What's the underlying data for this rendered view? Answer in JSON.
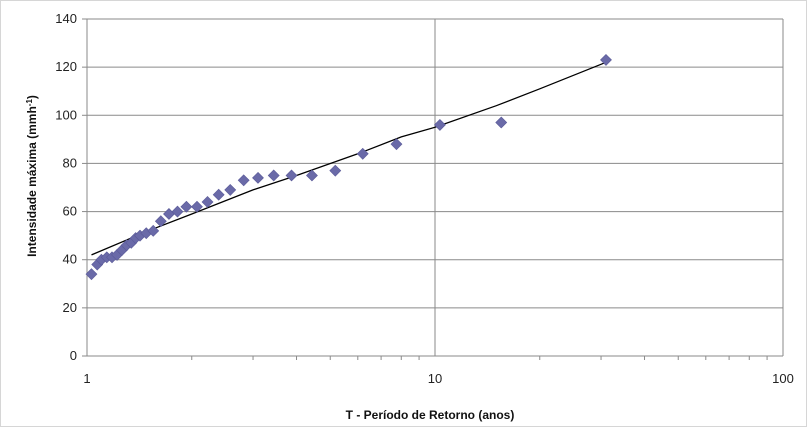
{
  "chart_data": {
    "type": "scatter",
    "xlabel": "T - Período de Retorno (anos)",
    "ylabel_main": "Intensidade máxima (mmh",
    "ylabel_sup": "-1",
    "ylabel_tail": ")",
    "xscale": "log",
    "xlim": [
      1,
      100
    ],
    "ylim": [
      0,
      140
    ],
    "x_ticks": [
      1,
      10,
      100
    ],
    "y_ticks": [
      0,
      20,
      40,
      60,
      80,
      100,
      120,
      140
    ],
    "grid": true,
    "legend": "none",
    "marker_color": "#6A6AA8",
    "line_color": "#000000",
    "series": [
      {
        "marker": "diamond",
        "x": [
          1.03,
          1.07,
          1.1,
          1.14,
          1.18,
          1.22,
          1.26,
          1.3,
          1.34,
          1.38,
          1.42,
          1.48,
          1.55,
          1.63,
          1.72,
          1.82,
          1.93,
          2.07,
          2.22,
          2.39,
          2.58,
          2.82,
          3.1,
          3.44,
          3.87,
          4.43,
          5.17,
          6.2,
          7.75,
          10.33,
          15.5,
          31.0
        ],
        "y": [
          34,
          38,
          40,
          41,
          41,
          42,
          44,
          46,
          47,
          49,
          50,
          51,
          52,
          56,
          59,
          60,
          62,
          62,
          64,
          67,
          69,
          73,
          74,
          75,
          75,
          75,
          77,
          84,
          88,
          96,
          97,
          123
        ]
      },
      {
        "type": "line",
        "x": [
          1.03,
          1.5,
          2,
          3,
          4,
          6,
          8,
          10,
          15,
          20,
          31
        ],
        "y": [
          42,
          52,
          59,
          69,
          75,
          84,
          91,
          95,
          104,
          111,
          122
        ]
      }
    ]
  }
}
